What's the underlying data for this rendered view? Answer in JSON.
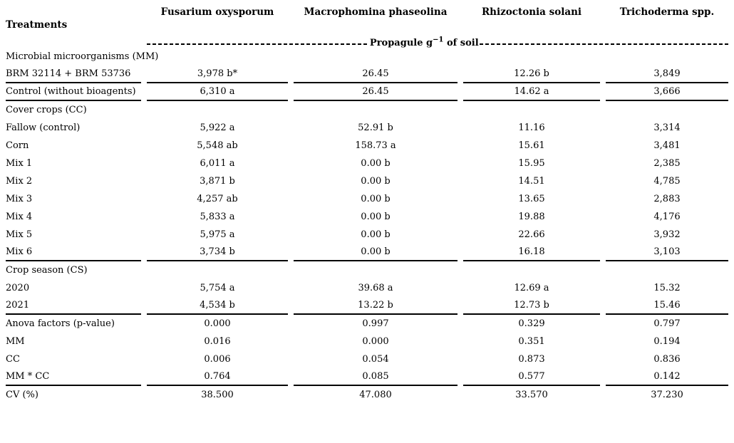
{
  "colors": {
    "text": "#000000",
    "background": "#ffffff",
    "rule": "#000000"
  },
  "table": {
    "row_header": "Treatments",
    "columns": [
      "Fusarium oxysporum",
      "Macrophomina phaseolina",
      "Rhizoctonia solani",
      "Trichoderma spp."
    ],
    "unit_line": {
      "prefix": "Propagule g",
      "sup": "−1",
      "suffix": " of soil"
    },
    "rows": [
      {
        "type": "section",
        "label": "Microbial microorganisms (MM)"
      },
      {
        "type": "data",
        "label": "BRM 32114 + BRM 53736",
        "values": [
          "3,978 b*",
          "26.45",
          "12.26 b",
          "3,849"
        ],
        "rule": true
      },
      {
        "type": "data",
        "label": "Control (without bioagents)",
        "values": [
          "6,310 a",
          "26.45",
          "14.62 a",
          "3,666"
        ],
        "rule": true
      },
      {
        "type": "section",
        "label": "Cover crops (CC)"
      },
      {
        "type": "data",
        "label": "Fallow (control)",
        "values": [
          "5,922 a",
          "52.91 b",
          "11.16",
          "3,314"
        ]
      },
      {
        "type": "data",
        "label": "Corn",
        "values": [
          "5,548 ab",
          "158.73 a",
          "15.61",
          "3,481"
        ]
      },
      {
        "type": "data",
        "label": "Mix 1",
        "values": [
          "6,011 a",
          "0.00 b",
          "15.95",
          "2,385"
        ]
      },
      {
        "type": "data",
        "label": "Mix 2",
        "values": [
          "3,871 b",
          "0.00 b",
          "14.51",
          "4,785"
        ]
      },
      {
        "type": "data",
        "label": "Mix 3",
        "values": [
          "4,257 ab",
          "0.00 b",
          "13.65",
          "2,883"
        ]
      },
      {
        "type": "data",
        "label": "Mix 4",
        "values": [
          "5,833 a",
          "0.00 b",
          "19.88",
          "4,176"
        ]
      },
      {
        "type": "data",
        "label": "Mix 5",
        "values": [
          "5,975 a",
          "0.00 b",
          "22.66",
          "3,932"
        ]
      },
      {
        "type": "data",
        "label": "Mix 6",
        "values": [
          "3,734 b",
          "0.00 b",
          "16.18",
          "3,103"
        ],
        "rule": true
      },
      {
        "type": "section",
        "label": "Crop season (CS)"
      },
      {
        "type": "data",
        "label": "2020",
        "values": [
          "5,754 a",
          "39.68 a",
          "12.69 a",
          "15.32"
        ]
      },
      {
        "type": "data",
        "label": "2021",
        "values": [
          "4,534 b",
          "13.22 b",
          "12.73 b",
          "15.46"
        ],
        "rule": true
      },
      {
        "type": "data",
        "label": "Anova factors (p-value)",
        "values": [
          "0.000",
          "0.997",
          "0.329",
          "0.797"
        ]
      },
      {
        "type": "data",
        "label": "MM",
        "values": [
          "0.016",
          "0.000",
          "0.351",
          "0.194"
        ]
      },
      {
        "type": "data",
        "label": "CC",
        "values": [
          "0.006",
          "0.054",
          "0.873",
          "0.836"
        ]
      },
      {
        "type": "data",
        "label": "MM * CC",
        "values": [
          "0.764",
          "0.085",
          "0.577",
          "0.142"
        ],
        "rule": true
      },
      {
        "type": "data",
        "label": "CV (%)",
        "values": [
          "38.500",
          "47.080",
          "33.570",
          "37.230"
        ]
      }
    ]
  }
}
